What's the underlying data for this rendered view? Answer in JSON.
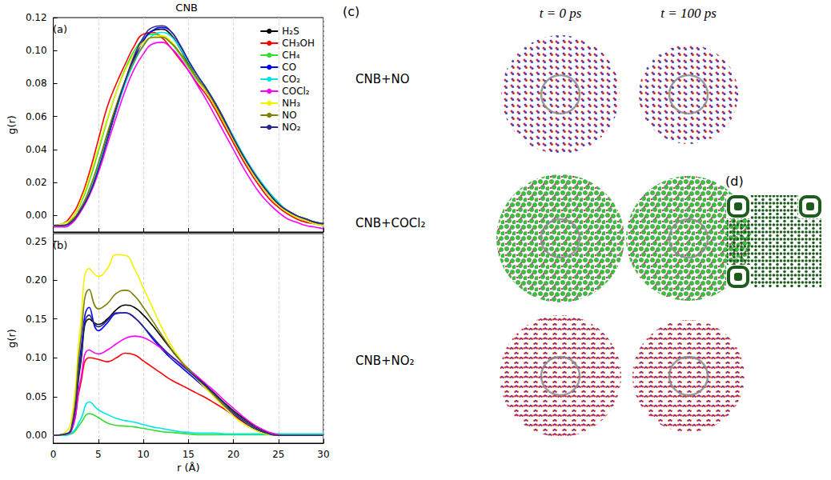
{
  "chart_data": [
    {
      "type": "line",
      "title": "CNB",
      "panel": "(a)",
      "ylabel": "g(r)",
      "x": [
        0,
        1,
        2,
        3,
        4,
        5,
        6,
        7,
        8,
        9,
        10,
        11,
        12,
        13,
        14,
        15,
        16,
        17,
        18,
        19,
        20,
        21,
        22,
        23,
        24,
        25,
        26,
        27,
        28,
        29,
        30
      ],
      "xlim": [
        0,
        30
      ],
      "xticks": [
        0,
        5,
        10,
        15,
        20,
        25,
        30
      ],
      "ylim": [
        -0.01,
        0.12
      ],
      "yticks": [
        {
          "value": 0,
          "label": "0.00"
        },
        {
          "value": 0.02,
          "label": "0.02"
        },
        {
          "value": 0.04,
          "label": "0.04"
        },
        {
          "value": 0.06,
          "label": "0.06"
        },
        {
          "value": 0.08,
          "label": "0.08"
        },
        {
          "value": 0.1,
          "label": "0.10"
        },
        {
          "value": 0.12,
          "label": "0.12"
        }
      ],
      "tick_labels": "y",
      "grid": true,
      "legend": "upper right",
      "series": [
        {
          "name": "H₂S",
          "color": "#000000",
          "values": [
            -0.006,
            -0.006,
            -0.004,
            0.004,
            0.015,
            0.03,
            0.048,
            0.066,
            0.082,
            0.096,
            0.106,
            0.112,
            0.113,
            0.11,
            0.102,
            0.092,
            0.083,
            0.075,
            0.066,
            0.056,
            0.046,
            0.036,
            0.027,
            0.019,
            0.012,
            0.006,
            0.002,
            -0.001,
            -0.003,
            -0.004,
            -0.005
          ]
        },
        {
          "name": "CH₃OH",
          "color": "#ff0000",
          "values": [
            -0.006,
            -0.005,
            0.0,
            0.01,
            0.026,
            0.046,
            0.066,
            0.08,
            0.092,
            0.103,
            0.11,
            0.111,
            0.108,
            0.102,
            0.095,
            0.088,
            0.08,
            0.073,
            0.064,
            0.054,
            0.044,
            0.034,
            0.025,
            0.017,
            0.01,
            0.005,
            0.001,
            -0.002,
            -0.004,
            -0.005,
            -0.006
          ]
        },
        {
          "name": "CH₄",
          "color": "#33dd33",
          "values": [
            -0.006,
            -0.005,
            -0.002,
            0.007,
            0.021,
            0.039,
            0.058,
            0.075,
            0.089,
            0.1,
            0.107,
            0.11,
            0.109,
            0.105,
            0.098,
            0.09,
            0.082,
            0.075,
            0.066,
            0.056,
            0.046,
            0.036,
            0.027,
            0.019,
            0.012,
            0.006,
            0.002,
            -0.001,
            -0.003,
            -0.005,
            -0.006
          ]
        },
        {
          "name": "CO",
          "color": "#0000ff",
          "values": [
            -0.006,
            -0.006,
            -0.004,
            0.003,
            0.013,
            0.028,
            0.046,
            0.064,
            0.081,
            0.095,
            0.106,
            0.112,
            0.114,
            0.112,
            0.104,
            0.094,
            0.085,
            0.077,
            0.068,
            0.058,
            0.047,
            0.037,
            0.028,
            0.02,
            0.013,
            0.007,
            0.003,
            0.0,
            -0.002,
            -0.004,
            -0.005
          ]
        },
        {
          "name": "CO₂",
          "color": "#00e5e5",
          "values": [
            -0.006,
            -0.006,
            -0.004,
            0.004,
            0.015,
            0.03,
            0.047,
            0.064,
            0.08,
            0.093,
            0.103,
            0.109,
            0.111,
            0.109,
            0.102,
            0.093,
            0.085,
            0.077,
            0.068,
            0.058,
            0.048,
            0.038,
            0.029,
            0.021,
            0.014,
            0.008,
            0.003,
            0.0,
            -0.002,
            -0.004,
            -0.005
          ]
        },
        {
          "name": "COCl₂",
          "color": "#ff00ff",
          "values": [
            -0.007,
            -0.007,
            -0.005,
            0.002,
            0.012,
            0.026,
            0.043,
            0.06,
            0.076,
            0.089,
            0.098,
            0.104,
            0.105,
            0.102,
            0.096,
            0.088,
            0.079,
            0.07,
            0.06,
            0.05,
            0.04,
            0.03,
            0.021,
            0.013,
            0.007,
            0.002,
            -0.002,
            -0.004,
            -0.006,
            -0.007,
            -0.008
          ]
        },
        {
          "name": "NH₃",
          "color": "#f2f200",
          "values": [
            -0.006,
            -0.005,
            -0.002,
            0.008,
            0.023,
            0.041,
            0.059,
            0.075,
            0.088,
            0.098,
            0.105,
            0.108,
            0.109,
            0.106,
            0.099,
            0.091,
            0.083,
            0.075,
            0.066,
            0.056,
            0.046,
            0.036,
            0.027,
            0.019,
            0.012,
            0.006,
            0.002,
            -0.001,
            -0.003,
            -0.005,
            -0.006
          ]
        },
        {
          "name": "NO",
          "color": "#808000",
          "values": [
            -0.006,
            -0.006,
            -0.003,
            0.004,
            0.016,
            0.032,
            0.05,
            0.067,
            0.082,
            0.094,
            0.103,
            0.108,
            0.108,
            0.105,
            0.099,
            0.091,
            0.083,
            0.076,
            0.067,
            0.057,
            0.047,
            0.037,
            0.028,
            0.02,
            0.013,
            0.007,
            0.003,
            0.0,
            -0.002,
            -0.004,
            -0.005
          ]
        },
        {
          "name": "NO₂",
          "color": "#2a2a8a",
          "values": [
            -0.006,
            -0.006,
            -0.004,
            0.003,
            0.013,
            0.028,
            0.046,
            0.065,
            0.082,
            0.097,
            0.108,
            0.114,
            0.115,
            0.112,
            0.104,
            0.094,
            0.085,
            0.077,
            0.068,
            0.058,
            0.047,
            0.037,
            0.028,
            0.02,
            0.013,
            0.007,
            0.003,
            0.0,
            -0.002,
            -0.004,
            -0.005
          ]
        }
      ]
    },
    {
      "type": "line",
      "panel": "(b)",
      "ylabel": "g(r)",
      "xlabel": "r (Å)",
      "x": [
        0,
        1,
        2,
        3,
        4,
        5,
        6,
        7,
        8,
        9,
        10,
        11,
        12,
        13,
        14,
        15,
        16,
        17,
        18,
        19,
        20,
        21,
        22,
        23,
        24,
        25,
        26,
        27,
        28,
        29,
        30
      ],
      "xlim": [
        0,
        30
      ],
      "xticks": [
        0,
        5,
        10,
        15,
        20,
        25,
        30
      ],
      "ylim": [
        -0.01,
        0.26
      ],
      "yticks": [
        {
          "value": 0,
          "label": "0.00"
        },
        {
          "value": 0.05,
          "label": "0.05"
        },
        {
          "value": 0.1,
          "label": "0.10"
        },
        {
          "value": 0.15,
          "label": "0.15"
        },
        {
          "value": 0.2,
          "label": "0.20"
        },
        {
          "value": 0.25,
          "label": "0.25"
        }
      ],
      "grid": true,
      "series": [
        {
          "name": "H₂S",
          "color": "#000000",
          "values": [
            0,
            0.001,
            0.008,
            0.09,
            0.15,
            0.143,
            0.15,
            0.162,
            0.168,
            0.165,
            0.155,
            0.142,
            0.127,
            0.112,
            0.098,
            0.086,
            0.075,
            0.064,
            0.053,
            0.042,
            0.032,
            0.023,
            0.015,
            0.008,
            0.003,
            0.001,
            0,
            0,
            0,
            0,
            0
          ]
        },
        {
          "name": "CH₃OH",
          "color": "#ff0000",
          "values": [
            0,
            0.001,
            0.006,
            0.065,
            0.1,
            0.098,
            0.095,
            0.1,
            0.106,
            0.104,
            0.096,
            0.088,
            0.08,
            0.072,
            0.066,
            0.06,
            0.054,
            0.048,
            0.041,
            0.034,
            0.026,
            0.018,
            0.011,
            0.005,
            0.002,
            0,
            0,
            0,
            0,
            0,
            0
          ]
        },
        {
          "name": "CH₄",
          "color": "#33dd33",
          "values": [
            0,
            0,
            0.002,
            0.015,
            0.028,
            0.023,
            0.016,
            0.013,
            0.012,
            0.011,
            0.009,
            0.007,
            0.005,
            0.004,
            0.003,
            0.002,
            0.001,
            0.001,
            0.001,
            0.001,
            0.001,
            0.001,
            0.001,
            0.001,
            0.001,
            0.001,
            0.001,
            0.001,
            0.001,
            0.001,
            0.001
          ]
        },
        {
          "name": "CO",
          "color": "#0000ff",
          "values": [
            0,
            0.001,
            0.008,
            0.105,
            0.165,
            0.135,
            0.145,
            0.157,
            0.158,
            0.152,
            0.14,
            0.125,
            0.112,
            0.1,
            0.09,
            0.08,
            0.07,
            0.06,
            0.049,
            0.038,
            0.028,
            0.019,
            0.011,
            0.005,
            0.002,
            0,
            0,
            0,
            0,
            0,
            0
          ]
        },
        {
          "name": "CO₂",
          "color": "#00e5e5",
          "values": [
            0,
            0,
            0.003,
            0.02,
            0.043,
            0.033,
            0.027,
            0.022,
            0.019,
            0.017,
            0.014,
            0.011,
            0.009,
            0.007,
            0.005,
            0.004,
            0.003,
            0.003,
            0.003,
            0.002,
            0.002,
            0.002,
            0.002,
            0.002,
            0.002,
            0.002,
            0.002,
            0.002,
            0.002,
            0.002,
            0.002
          ]
        },
        {
          "name": "COCl₂",
          "color": "#ff00ff",
          "values": [
            0,
            0.001,
            0.006,
            0.07,
            0.11,
            0.105,
            0.11,
            0.118,
            0.125,
            0.128,
            0.126,
            0.12,
            0.112,
            0.103,
            0.094,
            0.085,
            0.076,
            0.066,
            0.056,
            0.045,
            0.035,
            0.025,
            0.016,
            0.009,
            0.004,
            0.001,
            0,
            0,
            0,
            0,
            0
          ]
        },
        {
          "name": "NH₃",
          "color": "#f2f200",
          "values": [
            0,
            0.002,
            0.02,
            0.14,
            0.215,
            0.205,
            0.215,
            0.233,
            0.232,
            0.215,
            0.19,
            0.165,
            0.14,
            0.118,
            0.1,
            0.085,
            0.072,
            0.06,
            0.048,
            0.036,
            0.025,
            0.016,
            0.009,
            0.004,
            0.001,
            0,
            0,
            0,
            0,
            0,
            0
          ]
        },
        {
          "name": "NO",
          "color": "#808000",
          "values": [
            0,
            0.001,
            0.01,
            0.12,
            0.188,
            0.163,
            0.17,
            0.183,
            0.187,
            0.18,
            0.165,
            0.148,
            0.13,
            0.113,
            0.098,
            0.085,
            0.073,
            0.062,
            0.05,
            0.039,
            0.029,
            0.02,
            0.012,
            0.006,
            0.002,
            0,
            0,
            0,
            0,
            0,
            0
          ]
        },
        {
          "name": "NO₂",
          "color": "#2a2a8a",
          "values": [
            0,
            0.001,
            0.008,
            0.095,
            0.155,
            0.14,
            0.148,
            0.158,
            0.158,
            0.152,
            0.14,
            0.127,
            0.114,
            0.103,
            0.093,
            0.083,
            0.073,
            0.063,
            0.052,
            0.041,
            0.03,
            0.021,
            0.013,
            0.006,
            0.002,
            0,
            0,
            0,
            0,
            0,
            0
          ]
        }
      ]
    }
  ],
  "snapshots": {
    "panel": "(c)",
    "times": [
      "t = 0 ps",
      "t = 100 ps"
    ],
    "systems": [
      "CNB+NO",
      "CNB+COCl₂",
      "CNB+NO₂"
    ]
  },
  "qr_code": {
    "panel": "(d)"
  }
}
